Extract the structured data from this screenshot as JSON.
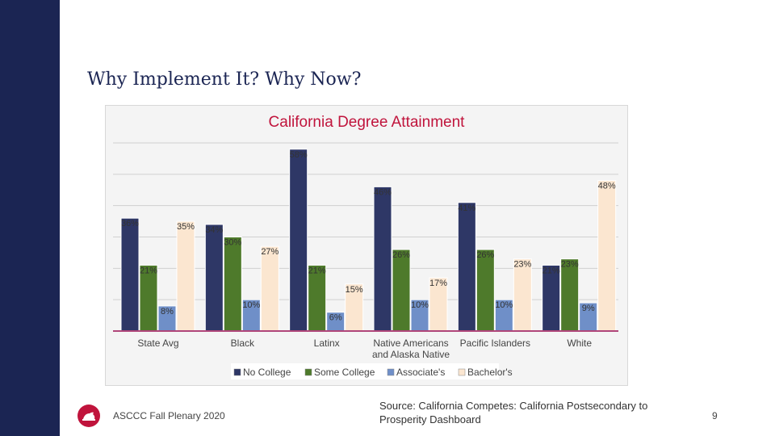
{
  "slide": {
    "title": "Why Implement It? Why Now?",
    "footer": "ASCCC Fall Plenary 2020",
    "source": "Source: California Competes: California Postsecondary to Prosperity Dashboard",
    "page_number": "9"
  },
  "colors": {
    "sidebar": "#1b2553",
    "accent": "#c0143c",
    "no_college": "#2e3766",
    "some_college": "#4e7a2b",
    "associates": "#6f8fc8",
    "bachelors": "#fbe6d0"
  },
  "chart_data": {
    "type": "bar",
    "title": "California Degree Attainment",
    "categories": [
      "State Avg",
      "Black",
      "Latinx",
      "Native Americans and Alaska Native",
      "Pacific Islanders",
      "White"
    ],
    "series": [
      {
        "name": "No College",
        "color": "#2e3766",
        "values": [
          36,
          34,
          58,
          46,
          41,
          21
        ],
        "labels": [
          "36%",
          "34%",
          "58%",
          "46%",
          "41%",
          "21%"
        ]
      },
      {
        "name": "Some College",
        "color": "#4e7a2b",
        "values": [
          21,
          30,
          21,
          26,
          26,
          23
        ],
        "labels": [
          "21%",
          "30%",
          "21%",
          "26%",
          "26%",
          "23%"
        ]
      },
      {
        "name": "Associate's",
        "color": "#6f8fc8",
        "values": [
          8,
          10,
          6,
          10,
          10,
          9
        ],
        "labels": [
          "8%",
          "10%",
          "6%",
          "10%",
          "10%",
          "9%"
        ]
      },
      {
        "name": "Bachelor's",
        "color": "#fbe6d0",
        "values": [
          35,
          27,
          15,
          17,
          23,
          48
        ],
        "labels": [
          "35%",
          "27%",
          "15%",
          "17%",
          "23%",
          "48%"
        ]
      }
    ],
    "ylim": [
      0,
      60
    ],
    "grid": true,
    "legend": "bottom"
  }
}
